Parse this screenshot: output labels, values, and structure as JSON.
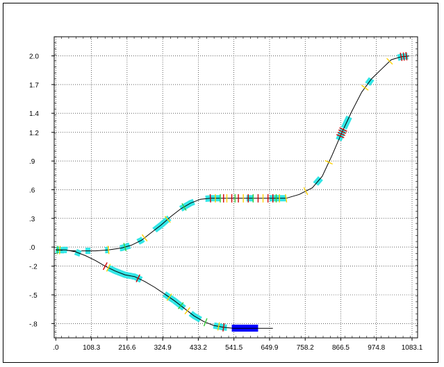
{
  "chart_data": {
    "type": "line",
    "title": "",
    "xlabel": "",
    "ylabel": "",
    "xlim": [
      -5,
      1100
    ],
    "ylim": [
      -0.95,
      2.2
    ],
    "grid": true,
    "x_tick_labels": [
      ".0",
      "108.3",
      "216.6",
      "324.9",
      "433.2",
      "541.5",
      "649.9",
      "758.2",
      "866.5",
      "974.8",
      "1083.1"
    ],
    "x_tick_values": [
      0,
      108.3,
      216.6,
      324.9,
      433.2,
      541.5,
      649.9,
      758.2,
      866.5,
      974.8,
      1083.1
    ],
    "y_tick_labels": [
      "2.0",
      "1.7",
      "1.4",
      "1.2",
      ".9",
      ".6",
      ".3",
      ".0",
      "-.2",
      "-.5",
      "-.8"
    ],
    "y_tick_values": [
      2.0,
      1.7,
      1.4,
      1.2,
      0.9,
      0.6,
      0.3,
      0.0,
      -0.2,
      -0.5,
      -0.8
    ],
    "colors": {
      "line": "#000000",
      "element": "#33e6e6",
      "marker_yellow": "#ffd200",
      "marker_red": "#d40000",
      "marker_green": "#33cc33",
      "block": "#0000ff"
    },
    "series": [
      {
        "values": [
          [
            0,
            -0.03
          ],
          [
            60,
            -0.04
          ],
          [
            120,
            -0.04
          ],
          [
            160,
            -0.03
          ],
          [
            200,
            -0.01
          ],
          [
            230,
            0.02
          ],
          [
            260,
            0.07
          ],
          [
            290,
            0.15
          ],
          [
            320,
            0.23
          ],
          [
            350,
            0.32
          ],
          [
            380,
            0.4
          ],
          [
            410,
            0.46
          ],
          [
            440,
            0.5
          ],
          [
            470,
            0.51
          ],
          [
            500,
            0.51
          ],
          [
            600,
            0.51
          ],
          [
            700,
            0.51
          ],
          [
            740,
            0.55
          ],
          [
            780,
            0.62
          ],
          [
            810,
            0.74
          ],
          [
            840,
            0.96
          ],
          [
            870,
            1.2
          ],
          [
            900,
            1.42
          ],
          [
            930,
            1.62
          ],
          [
            960,
            1.76
          ],
          [
            990,
            1.86
          ],
          [
            1020,
            1.96
          ],
          [
            1050,
            1.99
          ],
          [
            1075,
            2.0
          ]
        ],
        "elements": [
          [
            0,
            25,
            0.05
          ],
          [
            90,
            105,
            0.04
          ],
          [
            150,
            160,
            0.04
          ],
          [
            195,
            225,
            0.05
          ],
          [
            250,
            265,
            0.05
          ],
          [
            300,
            345,
            0.05
          ],
          [
            380,
            420,
            0.05
          ],
          [
            455,
            500,
            0.05
          ],
          [
            580,
            600,
            0.05
          ],
          [
            650,
            700,
            0.05
          ],
          [
            790,
            805,
            0.06
          ],
          [
            860,
            875,
            0.06
          ],
          [
            876,
            892,
            0.06
          ],
          [
            948,
            960,
            0.06
          ],
          [
            1040,
            1070,
            0.05
          ]
        ],
        "markers": [
          [
            5,
            "marker_green"
          ],
          [
            12,
            "marker_yellow"
          ],
          [
            160,
            "marker_yellow"
          ],
          [
            210,
            "marker_green"
          ],
          [
            270,
            "marker_yellow"
          ],
          [
            340,
            "marker_yellow"
          ],
          [
            390,
            "marker_green"
          ],
          [
            470,
            "marker_red"
          ],
          [
            485,
            "marker_yellow"
          ],
          [
            500,
            "marker_green"
          ],
          [
            510,
            "marker_red"
          ],
          [
            520,
            "marker_yellow"
          ],
          [
            535,
            "marker_red"
          ],
          [
            545,
            "marker_green"
          ],
          [
            555,
            "marker_red"
          ],
          [
            570,
            "marker_yellow"
          ],
          [
            585,
            "marker_red"
          ],
          [
            600,
            "marker_green"
          ],
          [
            615,
            "marker_red"
          ],
          [
            630,
            "marker_yellow"
          ],
          [
            645,
            "marker_red"
          ],
          [
            660,
            "marker_red"
          ],
          [
            670,
            "marker_green"
          ],
          [
            680,
            "marker_yellow"
          ],
          [
            700,
            "marker_yellow"
          ],
          [
            760,
            "marker_yellow"
          ],
          [
            830,
            "marker_yellow"
          ],
          [
            865,
            "marker_red"
          ],
          [
            868,
            "marker_red"
          ],
          [
            871,
            "marker_red"
          ],
          [
            874,
            "marker_red"
          ],
          [
            940,
            "marker_yellow"
          ],
          [
            1015,
            "marker_yellow"
          ],
          [
            1050,
            "marker_red"
          ],
          [
            1058,
            "marker_red"
          ],
          [
            1066,
            "marker_red"
          ]
        ]
      },
      {
        "values": [
          [
            0,
            -0.03
          ],
          [
            30,
            -0.03
          ],
          [
            60,
            -0.05
          ],
          [
            90,
            -0.09
          ],
          [
            120,
            -0.14
          ],
          [
            150,
            -0.2
          ],
          [
            180,
            -0.25
          ],
          [
            210,
            -0.29
          ],
          [
            240,
            -0.31
          ],
          [
            270,
            -0.36
          ],
          [
            300,
            -0.42
          ],
          [
            330,
            -0.49
          ],
          [
            360,
            -0.56
          ],
          [
            390,
            -0.64
          ],
          [
            420,
            -0.72
          ],
          [
            450,
            -0.78
          ],
          [
            480,
            -0.82
          ],
          [
            510,
            -0.84
          ],
          [
            540,
            -0.85
          ],
          [
            580,
            -0.85
          ],
          [
            620,
            -0.85
          ],
          [
            660,
            -0.85
          ]
        ],
        "elements": [
          [
            20,
            35,
            0.05
          ],
          [
            60,
            75,
            0.04
          ],
          [
            160,
            230,
            0.05
          ],
          [
            230,
            260,
            0.05
          ],
          [
            330,
            360,
            0.05
          ],
          [
            360,
            390,
            0.05
          ],
          [
            410,
            440,
            0.05
          ],
          [
            480,
            520,
            0.05
          ]
        ],
        "markers": [
          [
            150,
            "marker_red"
          ],
          [
            160,
            "marker_yellow"
          ],
          [
            250,
            "marker_red"
          ],
          [
            345,
            "marker_yellow"
          ],
          [
            380,
            "marker_green"
          ],
          [
            400,
            "marker_yellow"
          ],
          [
            455,
            "marker_green"
          ],
          [
            495,
            "marker_yellow"
          ],
          [
            510,
            "marker_red"
          ]
        ],
        "blocks": [
          [
            535,
            615
          ]
        ]
      }
    ]
  }
}
